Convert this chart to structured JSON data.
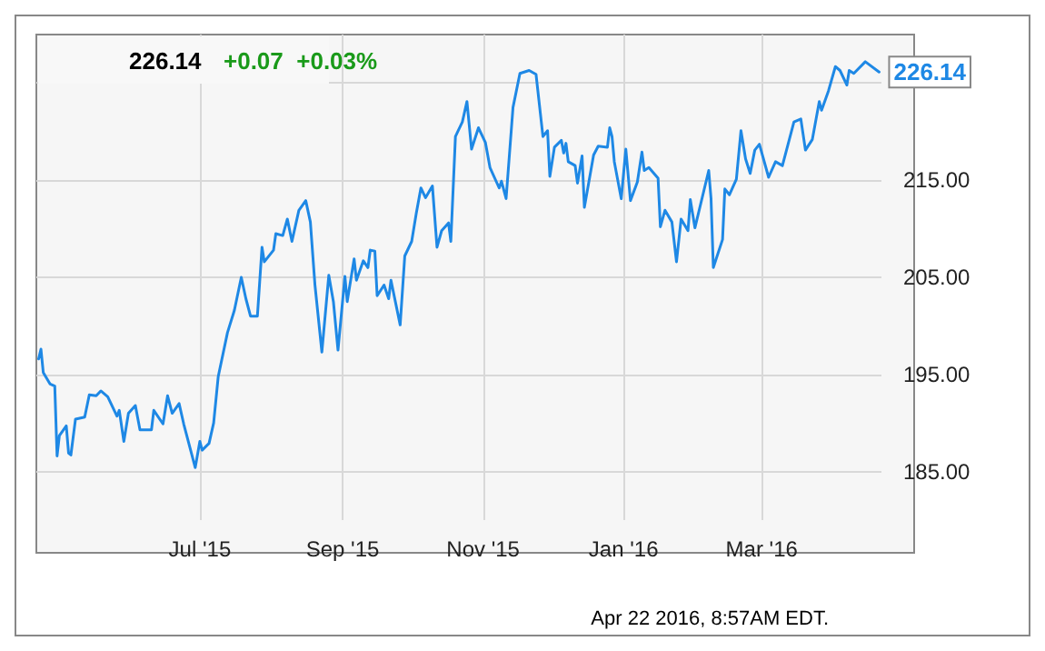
{
  "chart_data": {
    "type": "line",
    "title": "226.14",
    "subtitle": "+0.07  +0.03%",
    "annotations": [
      "Apr 22 2016, 8:57AM EDT."
    ],
    "x": [
      "2015-04-22",
      "2015-04-23",
      "2015-04-24",
      "2015-04-27",
      "2015-04-29",
      "2015-04-30",
      "2015-05-01",
      "2015-05-04",
      "2015-05-05",
      "2015-05-06",
      "2015-05-08",
      "2015-05-12",
      "2015-05-14",
      "2015-05-17",
      "2015-05-19",
      "2015-05-22",
      "2015-05-26",
      "2015-05-27",
      "2015-05-29",
      "2015-05-31",
      "2015-06-03",
      "2015-06-05",
      "2015-06-10",
      "2015-06-11",
      "2015-06-15",
      "2015-06-17",
      "2015-06-19",
      "2015-06-22",
      "2015-06-24",
      "2015-06-27",
      "2015-06-29",
      "2015-07-01",
      "2015-07-02",
      "2015-07-05",
      "2015-07-07",
      "2015-07-09",
      "2015-07-13",
      "2015-07-16",
      "2015-07-19",
      "2015-07-21",
      "2015-07-23",
      "2015-07-26",
      "2015-07-28",
      "2015-07-29",
      "2015-08-02",
      "2015-08-03",
      "2015-08-06",
      "2015-08-08",
      "2015-08-10",
      "2015-08-13",
      "2015-08-16",
      "2015-08-18",
      "2015-08-20",
      "2015-08-23",
      "2015-08-26",
      "2015-08-28",
      "2015-08-30",
      "2015-09-02",
      "2015-09-03",
      "2015-09-06",
      "2015-09-07",
      "2015-09-10",
      "2015-09-12",
      "2015-09-13",
      "2015-09-15",
      "2015-09-16",
      "2015-09-19",
      "2015-09-21",
      "2015-09-22",
      "2015-09-26",
      "2015-09-28",
      "2015-10-01",
      "2015-10-03",
      "2015-10-05",
      "2015-10-07",
      "2015-10-10",
      "2015-10-12",
      "2015-10-14",
      "2015-10-17",
      "2015-10-18",
      "2015-10-20",
      "2015-10-23",
      "2015-10-25",
      "2015-10-27",
      "2015-10-30",
      "2015-11-02",
      "2015-11-04",
      "2015-11-08",
      "2015-11-09",
      "2015-11-11",
      "2015-11-14",
      "2015-11-17",
      "2015-11-21",
      "2015-11-24",
      "2015-11-27",
      "2015-11-29",
      "2015-11-30",
      "2015-12-02",
      "2015-12-05",
      "2015-12-06",
      "2015-12-07",
      "2015-12-08",
      "2015-12-11",
      "2015-12-12",
      "2015-12-14",
      "2015-12-15",
      "2015-12-19",
      "2015-12-21",
      "2015-12-25",
      "2015-12-26",
      "2015-12-27",
      "2015-12-28",
      "2015-12-31",
      "2016-01-02",
      "2016-01-04",
      "2016-01-07",
      "2016-01-09",
      "2016-01-10",
      "2016-01-12",
      "2016-01-16",
      "2016-01-17",
      "2016-01-19",
      "2016-01-22",
      "2016-01-24",
      "2016-01-26",
      "2016-01-29",
      "2016-01-30",
      "2016-02-01",
      "2016-02-07",
      "2016-02-08",
      "2016-02-09",
      "2016-02-13",
      "2016-02-14",
      "2016-02-16",
      "2016-02-19",
      "2016-02-21",
      "2016-02-23",
      "2016-02-25",
      "2016-02-27",
      "2016-02-29",
      "2016-03-04",
      "2016-03-07",
      "2016-03-10",
      "2016-03-13",
      "2016-03-15",
      "2016-03-18",
      "2016-03-20",
      "2016-03-23",
      "2016-03-26",
      "2016-03-27",
      "2016-03-30",
      "2016-04-02",
      "2016-04-04",
      "2016-04-07",
      "2016-04-08",
      "2016-04-10",
      "2016-04-15",
      "2016-04-21"
    ],
    "series": [
      {
        "color": "#1e88e5",
        "values": [
          196.6,
          197.6,
          195.2,
          194.0,
          193.8,
          186.6,
          188.7,
          189.7,
          186.9,
          186.7,
          190.4,
          190.6,
          192.9,
          192.8,
          193.3,
          192.7,
          190.7,
          191.3,
          188.1,
          191.0,
          191.8,
          189.3,
          189.3,
          191.3,
          189.9,
          192.8,
          191.0,
          192.0,
          189.9,
          187.2,
          185.4,
          188.1,
          187.2,
          187.9,
          190.0,
          194.8,
          199.3,
          201.6,
          205.0,
          202.8,
          201.0,
          201.0,
          208.1,
          206.6,
          207.8,
          209.5,
          209.3,
          211.0,
          208.7,
          211.9,
          212.9,
          210.7,
          204.2,
          197.3,
          205.2,
          202.5,
          197.5,
          205.1,
          202.5,
          206.9,
          204.7,
          206.7,
          206.0,
          207.8,
          207.7,
          203.1,
          204.2,
          202.8,
          204.7,
          200.1,
          207.2,
          208.7,
          211.6,
          214.2,
          213.2,
          214.4,
          208.1,
          209.8,
          210.6,
          208.7,
          219.5,
          221.0,
          223.1,
          218.2,
          220.4,
          218.9,
          216.3,
          214.2,
          214.9,
          213.1,
          222.5,
          226.0,
          226.3,
          225.9,
          219.5,
          220.1,
          215.4,
          218.4,
          219.1,
          217.8,
          218.8,
          216.9,
          216.5,
          214.7,
          217.5,
          212.2,
          217.6,
          218.5,
          218.4,
          220.4,
          219.5,
          216.9,
          213.1,
          218.2,
          212.9,
          214.8,
          217.9,
          216.0,
          216.3,
          215.2,
          210.2,
          211.9,
          210.7,
          206.6,
          211.0,
          209.8,
          213.0,
          210.1,
          216.0,
          213.1,
          206.0,
          208.9,
          214.1,
          213.5,
          215.1,
          220.1,
          217.2,
          215.7,
          218.1,
          218.7,
          215.3,
          216.9,
          216.5,
          219.2,
          221.0,
          221.3,
          218.1,
          219.2,
          223.1,
          222.2,
          224.2,
          226.7,
          226.3,
          224.8,
          226.3,
          226.0,
          227.2,
          226.14
        ],
        "value_labels": [
          null,
          null,
          null,
          null,
          null,
          null,
          null,
          null,
          null,
          null,
          null,
          null,
          null,
          null,
          null,
          null,
          null,
          null,
          null,
          null,
          null,
          null,
          null,
          null,
          null,
          null,
          null,
          null,
          null,
          null,
          null,
          null,
          null,
          null,
          null,
          null,
          null,
          null,
          null,
          null,
          null,
          null,
          null,
          null,
          null,
          null,
          null,
          null,
          null,
          null,
          null,
          null,
          null,
          null,
          null,
          null,
          null,
          null,
          null,
          null,
          null,
          null,
          null,
          null,
          null,
          null,
          null,
          null,
          null,
          null,
          null,
          null,
          null,
          null,
          null,
          null,
          null,
          null,
          null,
          null,
          null,
          null,
          null,
          null,
          null,
          null,
          null,
          null,
          null,
          null,
          null,
          null,
          null,
          null,
          null,
          null,
          null,
          null,
          null,
          null,
          null,
          null,
          null,
          null,
          null,
          null,
          null,
          null,
          null,
          null,
          null,
          null,
          null,
          null,
          null,
          null,
          null,
          null,
          null,
          null,
          null,
          null,
          null,
          null,
          null,
          null,
          null,
          null,
          null,
          null,
          null,
          null,
          null,
          null,
          null,
          null,
          null,
          null,
          null,
          null,
          null,
          null,
          null,
          null,
          null,
          null,
          null,
          null,
          null,
          null,
          null,
          null,
          null,
          null,
          null,
          null,
          null,
          "226.14"
        ]
      }
    ],
    "xlim": [
      "2015-04-21",
      "2016-04-22"
    ],
    "xticks": [
      {
        "value": "2015-07-01",
        "label": "Jul '15"
      },
      {
        "value": "2015-09-01",
        "label": "Sep '15"
      },
      {
        "value": "2015-11-01",
        "label": "Nov '15"
      },
      {
        "value": "2016-01-01",
        "label": "Jan '16"
      },
      {
        "value": "2016-03-01",
        "label": "Mar '16"
      }
    ],
    "ylim": [
      180,
      230
    ],
    "yticks": [
      {
        "value": 185,
        "label": "185.00"
      },
      {
        "value": 195,
        "label": "195.00"
      },
      {
        "value": 205,
        "label": "205.00"
      },
      {
        "value": 215,
        "label": "215.00"
      },
      {
        "value": 225,
        "label": null
      }
    ],
    "grid": true,
    "marker": "none",
    "line_style": "solid"
  }
}
